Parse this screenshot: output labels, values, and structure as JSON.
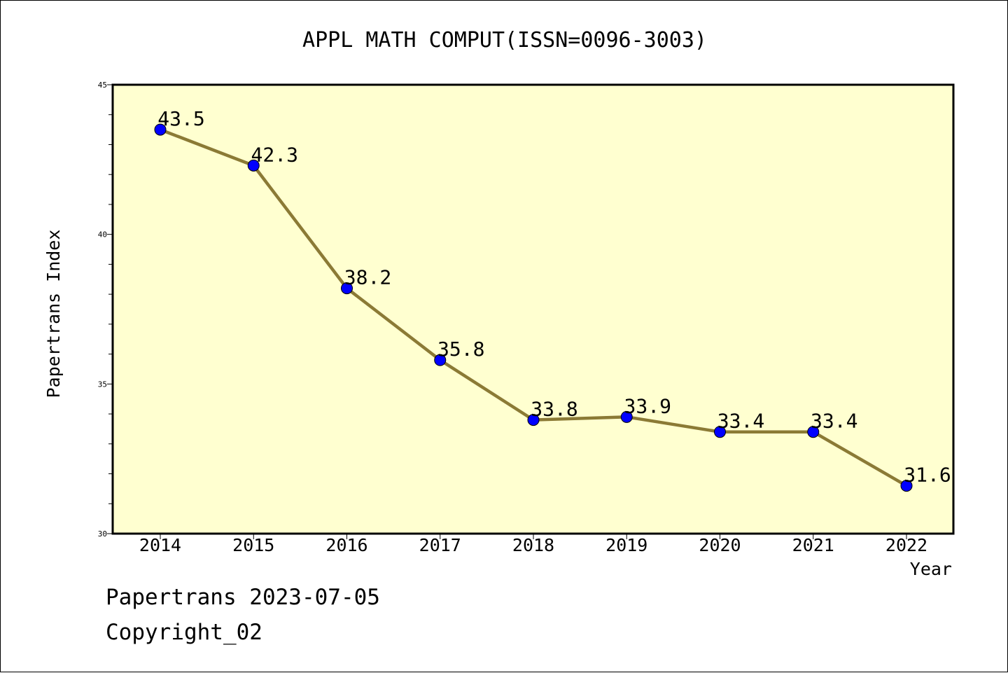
{
  "chart_data": {
    "type": "line",
    "title": "APPL MATH COMPUT(ISSN=0096-3003)",
    "xlabel": "Year",
    "ylabel": "Papertrans Index",
    "x": [
      "2014",
      "2015",
      "2016",
      "2017",
      "2018",
      "2019",
      "2020",
      "2021",
      "2022"
    ],
    "series": [
      {
        "values": [
          43.5,
          42.3,
          38.2,
          35.8,
          33.8,
          33.9,
          33.4,
          33.4,
          31.6
        ],
        "labels": [
          "43.5",
          "42.3",
          "38.2",
          "35.8",
          "33.8",
          "33.9",
          "33.4",
          "33.4",
          "31.6"
        ]
      }
    ],
    "ylim": [
      30,
      45
    ],
    "yticks": [
      "30",
      "35",
      "40",
      "45"
    ],
    "grid": false,
    "colors": {
      "plot_background": "#ffffd0",
      "line": "#8b7a35",
      "marker": "#0000ff"
    }
  },
  "footer": {
    "date_text": "Papertrans 2023-07-05",
    "copyright_text": "Copyright_02"
  }
}
